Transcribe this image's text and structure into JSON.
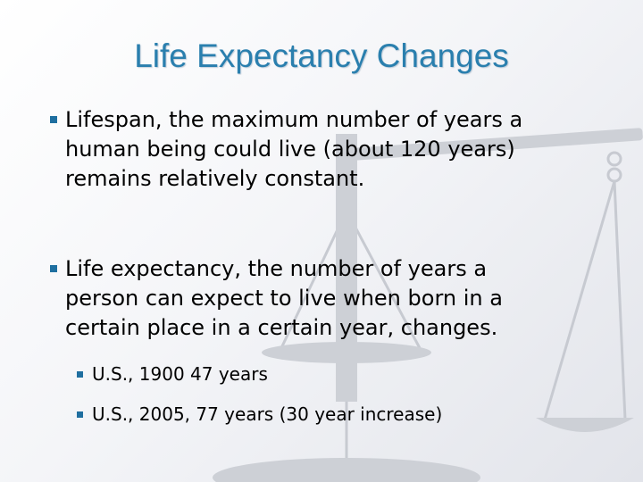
{
  "slide": {
    "title": "Life Expectancy Changes",
    "bullets": [
      {
        "lines": [
          "Lifespan, the maximum number of years a",
          "human being could live (about 120 years)",
          "remains relatively constant."
        ]
      },
      {
        "lines": [
          "Life expectancy, the number of years a",
          "person can expect to live when born in a",
          "certain place in a certain year, changes."
        ],
        "sub_bullets": [
          "U.S., 1900  47 years",
          "U.S., 2005, 77 years (30 year increase)"
        ]
      }
    ]
  },
  "colors": {
    "title": "#2a7fae",
    "bullet_marker": "#1f6fa0",
    "text": "#000000",
    "watermark": "#c4c7ce"
  },
  "background_icon": "balance-scale-icon"
}
